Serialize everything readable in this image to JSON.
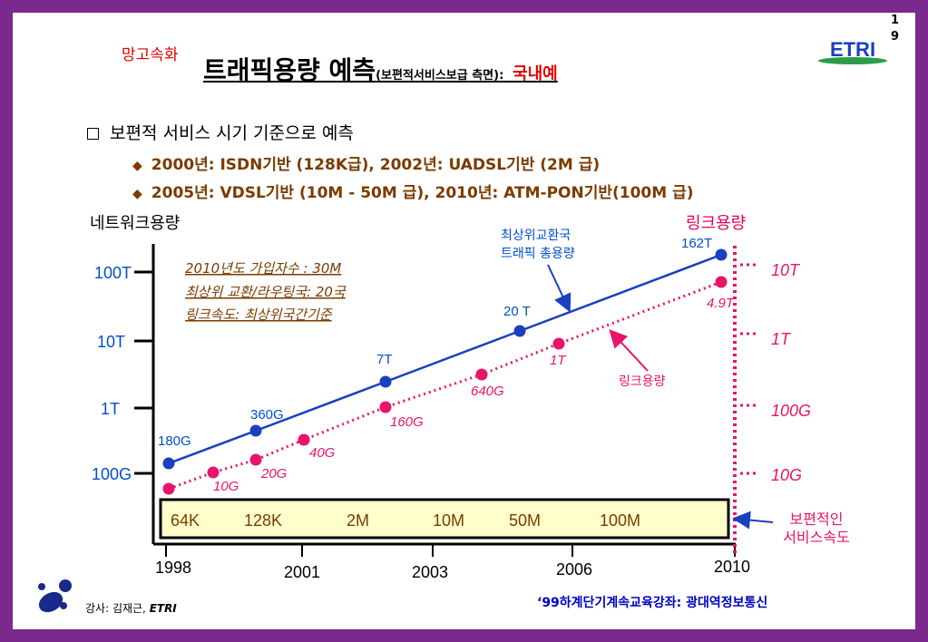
{
  "page_number": [
    "1",
    "9"
  ],
  "subtitle_tag": "망고속화",
  "title": {
    "main": "트래픽용량 예측",
    "sub": "(보편적서비스보급 측면):",
    "highlight": "국내예"
  },
  "logo_text": "ETRI",
  "bullet": "보편적 서비스 시기 기준으로 예측",
  "sub_bullets": [
    "2000년: ISDN기반 (128K급),  2002년: UADSL기반 (2M 급)",
    "2005년: VDSL기반 (10M - 50M 급), 2010년: ATM-PON기반(100M 급)"
  ],
  "left_axis_title": "네트워크용량",
  "right_axis_title": "링크용량",
  "note_lines": [
    "2010년도 가입자수 : 30M",
    "최상위 교환/라우팅국: 20국",
    "링크속도: 최상위국간기준"
  ],
  "annotation_network": [
    "최상위교환국",
    "트래픽 총용량"
  ],
  "annotation_link": "링크용량",
  "annotation_service": [
    "보편적인",
    "서비스속도"
  ],
  "service_speeds": [
    "64K",
    "128K",
    "2M",
    "10M",
    "50M",
    "100M"
  ],
  "footer_left": {
    "prefix": "강사: 김재근, ",
    "org": "ETRI"
  },
  "footer_right": "‘99하계단기계속교육강좌: 광대역정보통신",
  "colors": {
    "network": "#1a3fbf",
    "link": "#e8146a",
    "axis_label": "#0050c8",
    "note": "#7a3b00"
  },
  "chart_data": {
    "type": "line",
    "x_ticks": [
      "1998",
      "2001",
      "2003",
      "2006",
      "2010"
    ],
    "y_ticks_left": [
      "100T",
      "10T",
      "1T",
      "100G"
    ],
    "y_ticks_right": [
      "10T",
      "1T",
      "100G",
      "10G"
    ],
    "y_scale": "log",
    "series": [
      {
        "name": "최상위교환국 트래픽 총용량",
        "points": [
          {
            "x": 1998,
            "label": "180G"
          },
          {
            "x": 2000,
            "label": "360G"
          },
          {
            "x": 2002,
            "label": "7T"
          },
          {
            "x": 2005,
            "label": "20 T"
          },
          {
            "x": 2010,
            "label": "162T"
          }
        ]
      },
      {
        "name": "링크용량",
        "points": [
          {
            "x": 1998,
            "label": ""
          },
          {
            "x": 1999,
            "label": "10G"
          },
          {
            "x": 2000,
            "label": "20G"
          },
          {
            "x": 2001,
            "label": "40G"
          },
          {
            "x": 2002,
            "label": "160G"
          },
          {
            "x": 2004,
            "label": "640G"
          },
          {
            "x": 2006,
            "label": "1T"
          },
          {
            "x": 2010,
            "label": "4.9T"
          }
        ]
      }
    ]
  }
}
